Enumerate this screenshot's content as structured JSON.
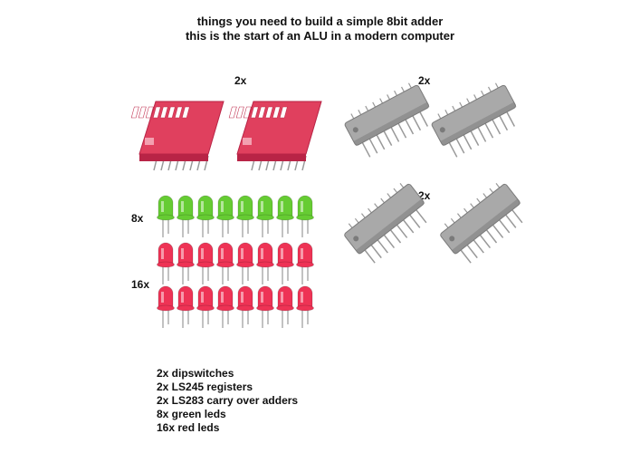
{
  "title": {
    "line1": "things you need to build a simple 8bit adder",
    "line2": "this is the start of an ALU in a modern computer"
  },
  "quantities": {
    "dipswitches": "2x",
    "registers": "2x",
    "adders": "2x",
    "green_leds": "8x",
    "red_leds": "16x"
  },
  "parts_list": [
    "2x dipswitches",
    "2x LS245 registers",
    "2x LS283 carry over adders",
    "8x green leds",
    "16x red leds"
  ],
  "colors": {
    "dipswitch": "#e0405e",
    "dipswitch_dark": "#b82446",
    "chip": "#a9a9a9",
    "chip_dark": "#7a7a7a",
    "led_green": "#66cc33",
    "led_red": "#ee3355",
    "pin": "#999999"
  }
}
